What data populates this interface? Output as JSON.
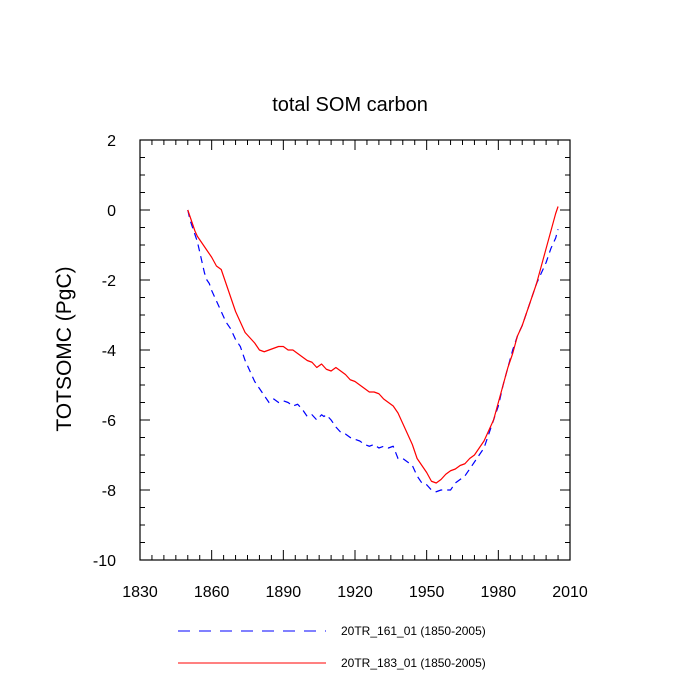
{
  "chart_data": {
    "type": "line",
    "title": "total SOM carbon",
    "xlabel": "",
    "ylabel": "TOTSOMC  (PgC)",
    "xlim": [
      1830,
      2010
    ],
    "ylim": [
      -10,
      2
    ],
    "xticks": [
      1830,
      1860,
      1890,
      1920,
      1950,
      1980,
      2010
    ],
    "yticks": [
      -10,
      -8,
      -6,
      -4,
      -2,
      0,
      2
    ],
    "grid": false,
    "legend_position": "bottom",
    "series": [
      {
        "name": "20TR_161_01 (1850-2005)",
        "color": "#0000ff",
        "style": "dashed",
        "x": [
          1850,
          1851,
          1852,
          1853,
          1854,
          1855,
          1856,
          1857,
          1858,
          1859,
          1860,
          1862,
          1864,
          1866,
          1868,
          1870,
          1872,
          1874,
          1876,
          1878,
          1880,
          1882,
          1884,
          1885,
          1886,
          1888,
          1890,
          1892,
          1894,
          1896,
          1898,
          1900,
          1902,
          1904,
          1906,
          1907,
          1908,
          1910,
          1912,
          1914,
          1916,
          1918,
          1920,
          1922,
          1924,
          1926,
          1928,
          1930,
          1932,
          1934,
          1936,
          1938,
          1940,
          1942,
          1944,
          1946,
          1948,
          1950,
          1952,
          1954,
          1956,
          1958,
          1960,
          1962,
          1964,
          1966,
          1968,
          1970,
          1972,
          1974,
          1976,
          1978,
          1980,
          1982,
          1984,
          1986,
          1988,
          1990,
          1992,
          1994,
          1996,
          1998,
          2000,
          2002,
          2004,
          2005
        ],
        "values": [
          0.0,
          -0.3,
          -0.5,
          -0.7,
          -0.9,
          -1.2,
          -1.5,
          -1.8,
          -2.0,
          -2.1,
          -2.3,
          -2.6,
          -2.9,
          -3.2,
          -3.4,
          -3.7,
          -3.9,
          -4.3,
          -4.6,
          -4.9,
          -5.1,
          -5.3,
          -5.5,
          -5.45,
          -5.4,
          -5.5,
          -5.45,
          -5.5,
          -5.6,
          -5.55,
          -5.7,
          -5.9,
          -5.85,
          -6.0,
          -5.85,
          -5.9,
          -5.85,
          -6.0,
          -6.2,
          -6.35,
          -6.4,
          -6.5,
          -6.55,
          -6.6,
          -6.7,
          -6.75,
          -6.7,
          -6.8,
          -6.75,
          -6.8,
          -6.75,
          -7.1,
          -7.1,
          -7.2,
          -7.3,
          -7.6,
          -7.8,
          -7.85,
          -8.0,
          -8.05,
          -8.0,
          -8.0,
          -8.0,
          -7.8,
          -7.7,
          -7.6,
          -7.4,
          -7.2,
          -7.0,
          -6.8,
          -6.4,
          -6.0,
          -5.6,
          -5.0,
          -4.5,
          -4.0,
          -3.6,
          -3.3,
          -2.9,
          -2.5,
          -2.1,
          -1.8,
          -1.5,
          -1.1,
          -0.8,
          -0.55
        ]
      },
      {
        "name": "20TR_183_01 (1850-2005)",
        "color": "#ff0000",
        "style": "solid",
        "x": [
          1850,
          1851,
          1852,
          1853,
          1854,
          1855,
          1856,
          1858,
          1860,
          1862,
          1864,
          1866,
          1868,
          1870,
          1872,
          1874,
          1876,
          1878,
          1880,
          1882,
          1884,
          1886,
          1888,
          1890,
          1892,
          1894,
          1896,
          1898,
          1900,
          1902,
          1904,
          1906,
          1908,
          1910,
          1912,
          1914,
          1916,
          1918,
          1920,
          1922,
          1924,
          1926,
          1928,
          1930,
          1932,
          1934,
          1936,
          1938,
          1940,
          1942,
          1944,
          1946,
          1948,
          1950,
          1952,
          1954,
          1956,
          1958,
          1960,
          1962,
          1964,
          1966,
          1968,
          1970,
          1972,
          1974,
          1976,
          1978,
          1980,
          1982,
          1984,
          1986,
          1988,
          1990,
          1992,
          1994,
          1996,
          1998,
          2000,
          2002,
          2004,
          2005
        ],
        "values": [
          0.0,
          -0.2,
          -0.4,
          -0.6,
          -0.75,
          -0.85,
          -0.95,
          -1.15,
          -1.35,
          -1.6,
          -1.7,
          -2.1,
          -2.5,
          -2.9,
          -3.2,
          -3.5,
          -3.65,
          -3.8,
          -4.0,
          -4.05,
          -4.0,
          -3.95,
          -3.9,
          -3.9,
          -4.0,
          -4.0,
          -4.1,
          -4.2,
          -4.3,
          -4.35,
          -4.5,
          -4.4,
          -4.55,
          -4.6,
          -4.5,
          -4.6,
          -4.7,
          -4.85,
          -4.9,
          -5.0,
          -5.1,
          -5.2,
          -5.2,
          -5.25,
          -5.4,
          -5.5,
          -5.6,
          -5.8,
          -6.1,
          -6.4,
          -6.7,
          -7.1,
          -7.3,
          -7.5,
          -7.75,
          -7.8,
          -7.7,
          -7.55,
          -7.45,
          -7.4,
          -7.3,
          -7.25,
          -7.1,
          -7.0,
          -6.8,
          -6.6,
          -6.3,
          -6.0,
          -5.5,
          -5.0,
          -4.5,
          -4.1,
          -3.6,
          -3.3,
          -2.9,
          -2.5,
          -2.1,
          -1.6,
          -1.1,
          -0.6,
          -0.1,
          0.1
        ]
      }
    ]
  }
}
